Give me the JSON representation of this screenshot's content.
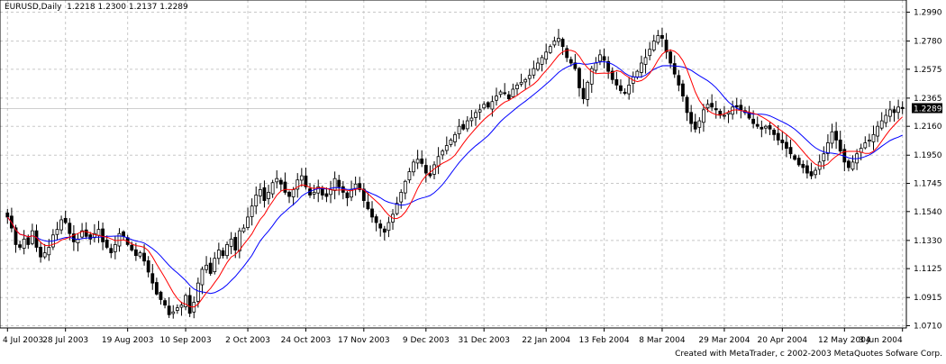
{
  "header": {
    "symbol": "EURUSD,Daily",
    "open": "1.2218",
    "high": "1.2300",
    "low": "1.2137",
    "close": "1.2289"
  },
  "credit": "Created with MetaTrader, c 2002-2003 MetaQuotes Sofware Corp.",
  "colors": {
    "background": "#ffffff",
    "candle": "#000000",
    "grid": "#c8c8c8",
    "ma_fast": "#ff0000",
    "ma_slow": "#0000ff",
    "price_tag_bg": "#000000",
    "price_tag_text": "#ffffff"
  },
  "chart_data": {
    "type": "candlestick",
    "symbol": "EURUSD",
    "timeframe": "Daily",
    "ylim": [
      1.07,
      1.3
    ],
    "y_ticks": [
      "1.2990",
      "1.2780",
      "1.2575",
      "1.2365",
      "1.2160",
      "1.1950",
      "1.1745",
      "1.1540",
      "1.1330",
      "1.1125",
      "1.0915",
      "1.0710"
    ],
    "current_price_label": "1.2289",
    "x_ticks": [
      "4 Jul 2003",
      "28 Jul 2003",
      "19 Aug 2003",
      "10 Sep 2003",
      "2 Oct 2003",
      "24 Oct 2003",
      "17 Nov 2003",
      "9 Dec 2003",
      "31 Dec 2003",
      "22 Jan 2004",
      "13 Feb 2004",
      "8 Mar 2004",
      "29 Mar 2004",
      "20 Apr 2004",
      "12 May 2004",
      "3 Jun 2004"
    ],
    "grid": true,
    "closes": [
      1.15,
      1.142,
      1.13,
      1.128,
      1.134,
      1.13,
      1.14,
      1.128,
      1.121,
      1.124,
      1.128,
      1.137,
      1.141,
      1.148,
      1.146,
      1.138,
      1.132,
      1.134,
      1.14,
      1.136,
      1.134,
      1.138,
      1.141,
      1.132,
      1.128,
      1.124,
      1.13,
      1.138,
      1.136,
      1.13,
      1.126,
      1.122,
      1.124,
      1.118,
      1.11,
      1.102,
      1.094,
      1.09,
      1.086,
      1.079,
      1.081,
      1.084,
      1.086,
      1.093,
      1.08,
      1.088,
      1.102,
      1.112,
      1.115,
      1.109,
      1.12,
      1.126,
      1.122,
      1.13,
      1.134,
      1.126,
      1.14,
      1.142,
      1.15,
      1.158,
      1.166,
      1.17,
      1.162,
      1.168,
      1.175,
      1.178,
      1.174,
      1.168,
      1.165,
      1.17,
      1.177,
      1.18,
      1.172,
      1.166,
      1.168,
      1.172,
      1.166,
      1.165,
      1.17,
      1.178,
      1.172,
      1.168,
      1.164,
      1.17,
      1.174,
      1.17,
      1.162,
      1.156,
      1.15,
      1.146,
      1.142,
      1.139,
      1.146,
      1.152,
      1.16,
      1.168,
      1.176,
      1.183,
      1.19,
      1.192,
      1.189,
      1.182,
      1.18,
      1.188,
      1.194,
      1.198,
      1.202,
      1.206,
      1.21,
      1.216,
      1.214,
      1.22,
      1.222,
      1.226,
      1.228,
      1.232,
      1.23,
      1.234,
      1.238,
      1.241,
      1.24,
      1.236,
      1.243,
      1.246,
      1.248,
      1.25,
      1.253,
      1.258,
      1.262,
      1.266,
      1.27,
      1.274,
      1.278,
      1.28,
      1.274,
      1.266,
      1.262,
      1.258,
      1.244,
      1.236,
      1.248,
      1.258,
      1.262,
      1.268,
      1.264,
      1.256,
      1.25,
      1.246,
      1.242,
      1.24,
      1.246,
      1.252,
      1.256,
      1.262,
      1.266,
      1.272,
      1.278,
      1.282,
      1.28,
      1.27,
      1.262,
      1.254,
      1.246,
      1.238,
      1.226,
      1.218,
      1.214,
      1.22,
      1.228,
      1.232,
      1.23,
      1.228,
      1.224,
      1.224,
      1.226,
      1.23,
      1.23,
      1.228,
      1.226,
      1.222,
      1.218,
      1.216,
      1.214,
      1.216,
      1.214,
      1.21,
      1.206,
      1.204,
      1.2,
      1.196,
      1.192,
      1.188,
      1.186,
      1.182,
      1.18,
      1.184,
      1.19,
      1.196,
      1.204,
      1.212,
      1.206,
      1.198,
      1.19,
      1.186,
      1.19,
      1.196,
      1.2,
      1.204,
      1.206,
      1.21,
      1.216,
      1.22,
      1.224,
      1.228,
      1.226,
      1.23,
      1.2289
    ]
  }
}
